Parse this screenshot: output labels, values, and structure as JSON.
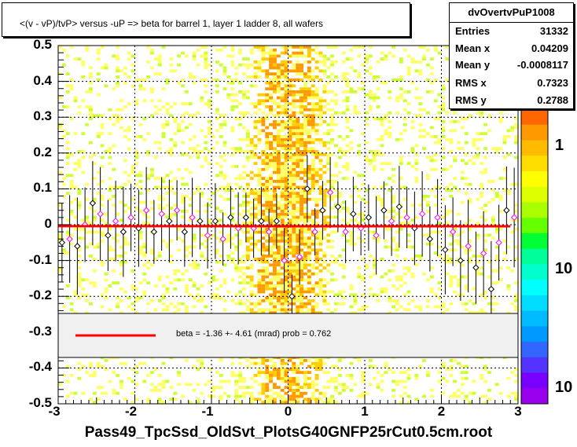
{
  "title": "<(v - vP)/tvP> versus  -uP => beta for barrel 1, layer 1 ladder 8, all wafers",
  "stats": {
    "name": "dvOvertvPuP1008",
    "rows": [
      {
        "label": "Entries",
        "value": "31332"
      },
      {
        "label": "Mean x",
        "value": "0.04209"
      },
      {
        "label": "Mean y",
        "value": "-0.0008117"
      },
      {
        "label": "RMS x",
        "value": "0.7323"
      },
      {
        "label": "RMS y",
        "value": "0.2788"
      }
    ]
  },
  "legend": {
    "text": "beta =   -1.36 +-  4.61 (mrad) prob = 0.762",
    "line_color": "#ff0000"
  },
  "footer": "Pass49_TpcSsd_OldSvt_PlotsG40GNFP25rCut0.5cm.root",
  "colors": {
    "fit": "#ff0000",
    "profile_black": "#000000",
    "profile_magenta": "#ff00ff",
    "legend_bg": "#f0f0f0"
  },
  "chart_data": {
    "type": "heatmap",
    "xlim": [
      -3,
      3
    ],
    "ylim": [
      -0.5,
      0.5
    ],
    "x_ticks": [
      "-3",
      "-2",
      "-1",
      "0",
      "1",
      "2",
      "3"
    ],
    "y_ticks": [
      "0.5",
      "0.4",
      "0.3",
      "0.2",
      "0.1",
      "0",
      "-0.1",
      "-0.2",
      "-0.3",
      "-0.4",
      "-0.5"
    ],
    "z_ticks": [
      "1",
      "10",
      "10"
    ],
    "grid": true,
    "fit": {
      "x": [
        -3,
        2.9
      ],
      "y": [
        -0.004,
        -0.0045
      ],
      "color": "#ff0000"
    },
    "profile_points": [
      {
        "x": -2.95,
        "y": -0.05
      },
      {
        "x": -2.85,
        "y": -0.04
      },
      {
        "x": -2.75,
        "y": -0.06
      },
      {
        "x": -2.65,
        "y": 0.0
      },
      {
        "x": -2.55,
        "y": 0.06
      },
      {
        "x": -2.45,
        "y": 0.03
      },
      {
        "x": -2.35,
        "y": -0.03
      },
      {
        "x": -2.25,
        "y": 0.01
      },
      {
        "x": -2.15,
        "y": -0.02
      },
      {
        "x": -2.05,
        "y": 0.02
      },
      {
        "x": -1.95,
        "y": -0.01
      },
      {
        "x": -1.85,
        "y": 0.04
      },
      {
        "x": -1.75,
        "y": -0.02
      },
      {
        "x": -1.65,
        "y": 0.03
      },
      {
        "x": -1.55,
        "y": 0.01
      },
      {
        "x": -1.45,
        "y": 0.04
      },
      {
        "x": -1.35,
        "y": -0.02
      },
      {
        "x": -1.25,
        "y": 0.02
      },
      {
        "x": -1.15,
        "y": 0.01
      },
      {
        "x": -1.05,
        "y": -0.03
      },
      {
        "x": -0.95,
        "y": 0.01
      },
      {
        "x": -0.85,
        "y": -0.04
      },
      {
        "x": -0.75,
        "y": 0.02
      },
      {
        "x": -0.65,
        "y": -0.01
      },
      {
        "x": -0.55,
        "y": 0.02
      },
      {
        "x": -0.45,
        "y": -0.01
      },
      {
        "x": -0.35,
        "y": 0.01
      },
      {
        "x": -0.25,
        "y": -0.02
      },
      {
        "x": -0.15,
        "y": 0.01
      },
      {
        "x": -0.05,
        "y": -0.1
      },
      {
        "x": 0.05,
        "y": -0.2
      },
      {
        "x": 0.15,
        "y": -0.09
      },
      {
        "x": 0.25,
        "y": 0.1
      },
      {
        "x": 0.35,
        "y": -0.02
      },
      {
        "x": 0.45,
        "y": 0.04
      },
      {
        "x": 0.55,
        "y": 0.09
      },
      {
        "x": 0.65,
        "y": 0.05
      },
      {
        "x": 0.75,
        "y": -0.02
      },
      {
        "x": 0.85,
        "y": 0.03
      },
      {
        "x": 0.95,
        "y": -0.01
      },
      {
        "x": 1.05,
        "y": 0.02
      },
      {
        "x": 1.15,
        "y": -0.03
      },
      {
        "x": 1.25,
        "y": 0.04
      },
      {
        "x": 1.35,
        "y": 0.01
      },
      {
        "x": 1.45,
        "y": 0.05
      },
      {
        "x": 1.55,
        "y": 0.02
      },
      {
        "x": 1.65,
        "y": -0.01
      },
      {
        "x": 1.75,
        "y": 0.03
      },
      {
        "x": 1.85,
        "y": -0.04
      },
      {
        "x": 1.95,
        "y": 0.02
      },
      {
        "x": 2.05,
        "y": -0.07
      },
      {
        "x": 2.15,
        "y": -0.02
      },
      {
        "x": 2.25,
        "y": -0.1
      },
      {
        "x": 2.35,
        "y": -0.06
      },
      {
        "x": 2.45,
        "y": -0.12
      },
      {
        "x": 2.55,
        "y": -0.08
      },
      {
        "x": 2.65,
        "y": -0.18
      },
      {
        "x": 2.75,
        "y": -0.05
      },
      {
        "x": 2.85,
        "y": 0.04
      },
      {
        "x": 2.95,
        "y": 0.02
      }
    ]
  }
}
